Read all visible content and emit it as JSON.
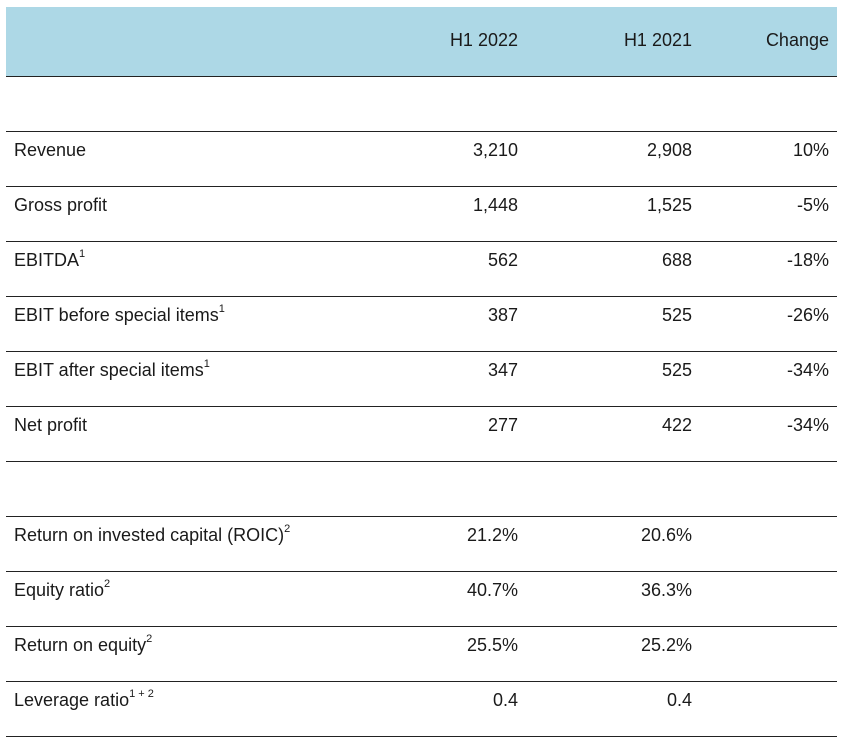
{
  "header": {
    "col1": "H1 2022",
    "col2": "H1 2021",
    "col3": "Change"
  },
  "section1": [
    {
      "label": "Revenue",
      "sup": "",
      "h1_2022": "3,210",
      "h1_2021": "2,908",
      "change": "10%"
    },
    {
      "label": "Gross profit",
      "sup": "",
      "h1_2022": "1,448",
      "h1_2021": "1,525",
      "change": "-5%"
    },
    {
      "label": "EBITDA",
      "sup": "1",
      "h1_2022": "562",
      "h1_2021": "688",
      "change": "-18%"
    },
    {
      "label": "EBIT before special items",
      "sup": "1",
      "h1_2022": "387",
      "h1_2021": "525",
      "change": "-26%"
    },
    {
      "label": "EBIT after special items",
      "sup": "1",
      "h1_2022": "347",
      "h1_2021": "525",
      "change": "-34%"
    },
    {
      "label": "Net profit",
      "sup": "",
      "h1_2022": "277",
      "h1_2021": "422",
      "change": "-34%"
    }
  ],
  "section2": [
    {
      "label": "Return on invested capital (ROIC)",
      "sup": "2",
      "h1_2022": "21.2%",
      "h1_2021": "20.6%",
      "change": ""
    },
    {
      "label": "Equity ratio",
      "sup": "2",
      "h1_2022": "40.7%",
      "h1_2021": "36.3%",
      "change": ""
    },
    {
      "label": "Return on equity",
      "sup": "2",
      "h1_2022": "25.5%",
      "h1_2021": "25.2%",
      "change": ""
    },
    {
      "label": "Leverage ratio",
      "sup": "1 + 2",
      "h1_2022": "0.4",
      "h1_2021": "0.4",
      "change": ""
    }
  ],
  "colors": {
    "header_background": "#add8e6",
    "rule": "#222222"
  }
}
